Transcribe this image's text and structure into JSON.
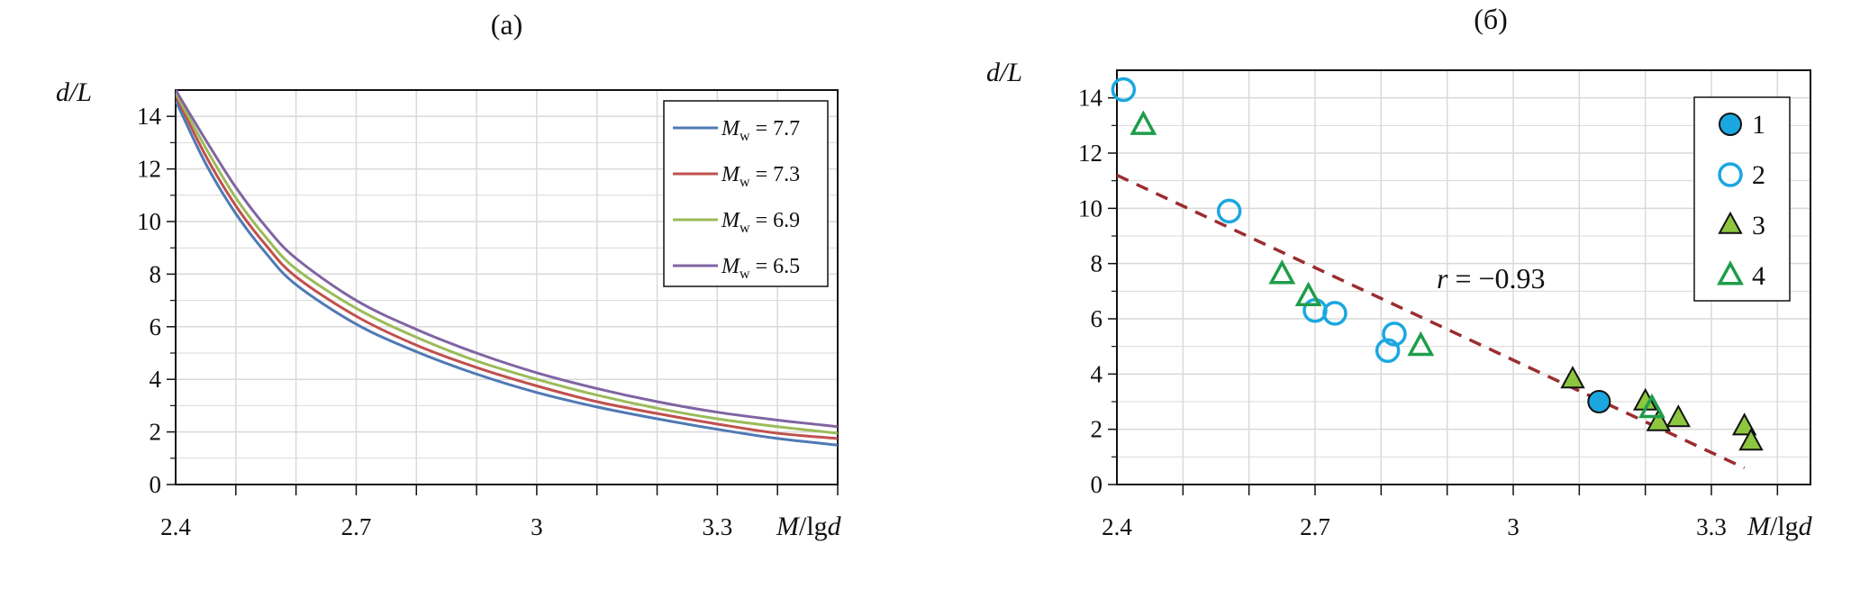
{
  "chart_data": [
    {
      "type": "line",
      "panel_label": "(a)",
      "xlabel": {
        "italic": "M",
        "plain": "/lg",
        "italic2": "d"
      },
      "ylabel": "d/L",
      "xlim": [
        2.4,
        3.5
      ],
      "ylim": [
        0,
        15
      ],
      "x_ticks": [
        2.4,
        2.7,
        3,
        3.3
      ],
      "x_tick_labels": [
        "2.4",
        "2.7",
        "3",
        "3.3"
      ],
      "y_ticks": [
        0,
        2,
        4,
        6,
        8,
        10,
        12,
        14
      ],
      "y_tick_labels": [
        "0",
        "2",
        "4",
        "6",
        "8",
        "10",
        "12",
        "14"
      ],
      "grid": true,
      "legend_position": "top-right",
      "series": [
        {
          "legend_label": {
            "sym": "M",
            "sub": "w",
            "rest": " = 7.7"
          },
          "color": "#4f79b5",
          "x": [
            2.4,
            2.45,
            2.5,
            2.55,
            2.6,
            2.7,
            2.8,
            2.9,
            3.0,
            3.1,
            3.2,
            3.3,
            3.4,
            3.5
          ],
          "y": [
            14.6,
            12.2,
            10.3,
            8.8,
            7.6,
            6.1,
            5.05,
            4.2,
            3.5,
            2.95,
            2.5,
            2.1,
            1.75,
            1.5
          ]
        },
        {
          "legend_label": {
            "sym": "M",
            "sub": "w",
            "rest": " = 7.3"
          },
          "color": "#c0504d",
          "x": [
            2.4,
            2.45,
            2.5,
            2.55,
            2.6,
            2.7,
            2.8,
            2.9,
            3.0,
            3.1,
            3.2,
            3.3,
            3.4,
            3.5
          ],
          "y": [
            14.8,
            12.5,
            10.6,
            9.1,
            7.9,
            6.4,
            5.3,
            4.45,
            3.75,
            3.15,
            2.7,
            2.3,
            1.95,
            1.75
          ]
        },
        {
          "legend_label": {
            "sym": "M",
            "sub": "w",
            "rest": " = 6.9"
          },
          "color": "#9bbb59",
          "x": [
            2.4,
            2.45,
            2.5,
            2.55,
            2.6,
            2.7,
            2.8,
            2.9,
            3.0,
            3.1,
            3.2,
            3.3,
            3.4,
            3.5
          ],
          "y": [
            14.9,
            12.8,
            10.9,
            9.4,
            8.2,
            6.7,
            5.6,
            4.7,
            4.0,
            3.4,
            2.9,
            2.5,
            2.2,
            1.95
          ]
        },
        {
          "legend_label": {
            "sym": "M",
            "sub": "w",
            "rest": " = 6.5"
          },
          "color": "#8064a2",
          "x": [
            2.4,
            2.45,
            2.5,
            2.55,
            2.6,
            2.7,
            2.8,
            2.9,
            3.0,
            3.1,
            3.2,
            3.3,
            3.4,
            3.5
          ],
          "y": [
            15.0,
            13.1,
            11.3,
            9.8,
            8.6,
            7.0,
            5.9,
            5.0,
            4.25,
            3.65,
            3.15,
            2.75,
            2.45,
            2.2
          ]
        }
      ]
    },
    {
      "type": "scatter",
      "panel_label": "(б)",
      "xlabel": {
        "italic": "M",
        "plain": "/lg",
        "italic2": "d"
      },
      "ylabel": "d/L",
      "xlim": [
        2.4,
        3.45
      ],
      "ylim": [
        0,
        15
      ],
      "x_ticks": [
        2.4,
        2.7,
        3,
        3.3
      ],
      "x_tick_labels": [
        "2.4",
        "2.7",
        "3",
        "3.3"
      ],
      "y_ticks": [
        0,
        2,
        4,
        6,
        8,
        10,
        12,
        14
      ],
      "y_tick_labels": [
        "0",
        "2",
        "4",
        "6",
        "8",
        "10",
        "12",
        "14"
      ],
      "grid": true,
      "legend_position": "top-right",
      "annotation": {
        "italic": "r",
        "rest": " = −0.93"
      },
      "trendline": {
        "x": [
          2.4,
          3.35
        ],
        "y": [
          11.2,
          0.6
        ],
        "color": "#9b2d30"
      },
      "series": [
        {
          "name": "1",
          "marker": "circle",
          "fill": "#1aa7e0",
          "stroke": "#111111",
          "points": [
            [
              3.13,
              3.0
            ]
          ]
        },
        {
          "name": "2",
          "marker": "circle",
          "fill": "none",
          "stroke": "#1aa7e0",
          "points": [
            [
              2.41,
              14.3
            ],
            [
              2.57,
              9.9
            ],
            [
              2.7,
              6.3
            ],
            [
              2.73,
              6.2
            ],
            [
              2.81,
              4.85
            ],
            [
              2.82,
              5.45
            ]
          ]
        },
        {
          "name": "3",
          "marker": "triangle",
          "fill": "#8dc63f",
          "stroke": "#111111",
          "points": [
            [
              3.09,
              3.8
            ],
            [
              3.2,
              3.0
            ],
            [
              3.22,
              2.25
            ],
            [
              3.25,
              2.4
            ],
            [
              3.35,
              2.1
            ],
            [
              3.36,
              1.55
            ]
          ]
        },
        {
          "name": "4",
          "marker": "triangle",
          "fill": "none",
          "stroke": "#1f9d4a",
          "points": [
            [
              2.44,
              13.0
            ],
            [
              2.65,
              7.6
            ],
            [
              2.69,
              6.8
            ],
            [
              2.86,
              5.0
            ],
            [
              3.21,
              2.75
            ]
          ]
        }
      ]
    }
  ]
}
